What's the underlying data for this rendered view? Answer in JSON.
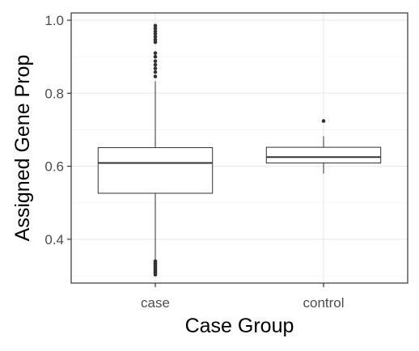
{
  "chart_data": {
    "type": "boxplot",
    "title": "",
    "xlabel": "Case Group",
    "ylabel": "Assigned Gene Prop",
    "ylim": [
      0.28,
      1.02
    ],
    "y_ticks": [
      0.4,
      0.6,
      0.8,
      1.0
    ],
    "y_tick_labels": [
      "0.4",
      "0.6",
      "0.8",
      "1.0"
    ],
    "y_minor_ticks": [
      0.3,
      0.5,
      0.7,
      0.9
    ],
    "grid": true,
    "categories": [
      "case",
      "control"
    ],
    "boxes": [
      {
        "category": "case",
        "whisker_low": 0.345,
        "q1": 0.526,
        "median": 0.609,
        "q3": 0.651,
        "whisker_high": 0.833,
        "outliers": [
          0.303,
          0.308,
          0.312,
          0.316,
          0.32,
          0.324,
          0.328,
          0.332,
          0.336,
          0.34,
          0.846,
          0.858,
          0.868,
          0.878,
          0.888,
          0.9,
          0.91,
          0.94,
          0.947,
          0.955,
          0.963,
          0.97,
          0.978,
          0.985
        ]
      },
      {
        "category": "control",
        "whisker_low": 0.58,
        "q1": 0.609,
        "median": 0.625,
        "q3": 0.652,
        "whisker_high": 0.682,
        "outliers": [
          0.724
        ]
      }
    ]
  },
  "colors": {
    "box_fill": "#ffffff",
    "box_stroke": "#333333",
    "outlier": "#333333",
    "axis_line": "#333333",
    "grid_major": "#ebebeb",
    "grid_minor": "#f5f5f5",
    "tick_text": "#4d4d4d",
    "axis_title": "#000000"
  }
}
